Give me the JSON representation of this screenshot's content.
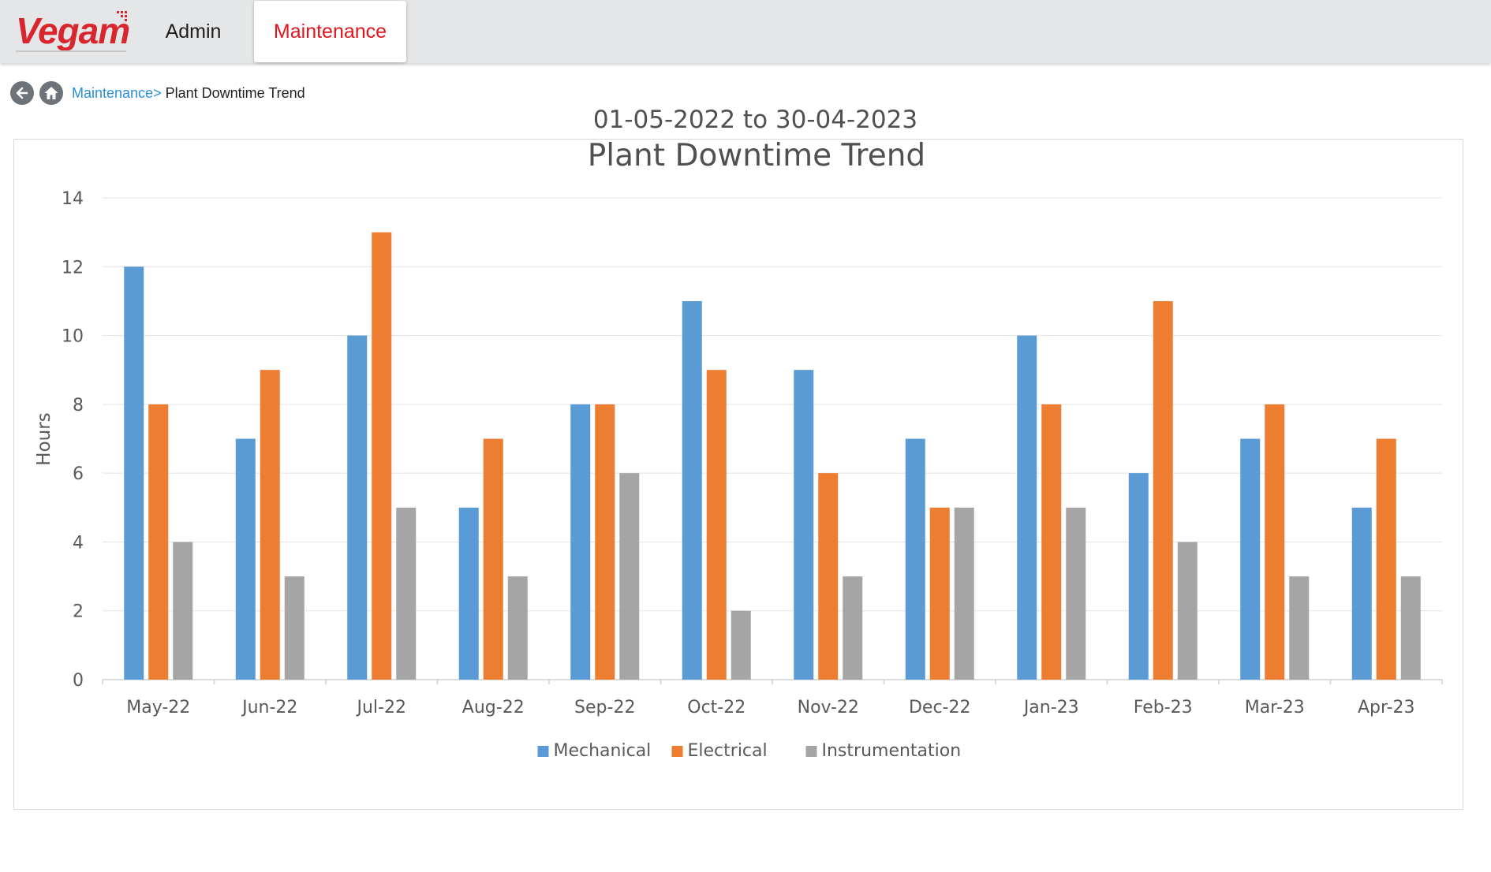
{
  "header": {
    "logo_text": "Vegam",
    "brand_color": "#d8262e",
    "nav": [
      {
        "label": "Admin",
        "active": false
      },
      {
        "label": "Maintenance",
        "active": true
      }
    ]
  },
  "breadcrumb": {
    "back_icon": "arrow-left-icon",
    "home_icon": "home-icon",
    "parent": "Maintenance>",
    "current": "Plant Downtime Trend"
  },
  "date_range": "01-05-2022 to 30-04-2023",
  "chart_data": {
    "type": "bar",
    "title": "Plant Downtime Trend",
    "xlabel": "",
    "ylabel": "Hours",
    "ylim": [
      0,
      14
    ],
    "yticks": [
      0,
      2,
      4,
      6,
      8,
      10,
      12,
      14
    ],
    "grid": true,
    "legend_position": "bottom",
    "categories": [
      "May-22",
      "Jun-22",
      "Jul-22",
      "Aug-22",
      "Sep-22",
      "Oct-22",
      "Nov-22",
      "Dec-22",
      "Jan-23",
      "Feb-23",
      "Mar-23",
      "Apr-23"
    ],
    "series": [
      {
        "name": "Mechanical",
        "color": "#5b9bd5",
        "values": [
          12,
          7,
          10,
          5,
          8,
          11,
          9,
          7,
          10,
          6,
          7,
          5
        ]
      },
      {
        "name": "Electrical",
        "color": "#ed7d31",
        "values": [
          8,
          9,
          13,
          7,
          8,
          9,
          6,
          5,
          8,
          11,
          8,
          7
        ]
      },
      {
        "name": "Instrumentation",
        "color": "#a5a5a5",
        "values": [
          4,
          3,
          5,
          3,
          6,
          2,
          3,
          5,
          5,
          4,
          3,
          3
        ]
      }
    ]
  }
}
